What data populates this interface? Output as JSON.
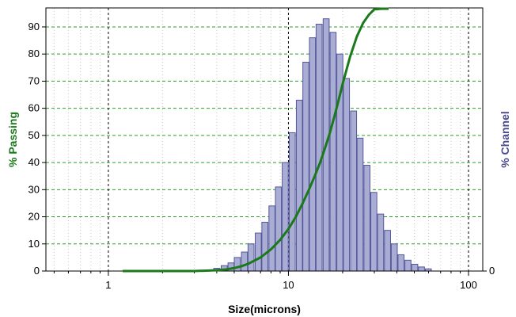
{
  "chart_data": {
    "type": "bar",
    "xlabel": "Size(microns)",
    "ylabel_left": "% Passing",
    "ylabel_right": "% Channel",
    "x_scale": "log",
    "xlim": [
      0.45,
      120
    ],
    "x_ticks": [
      {
        "value": 1,
        "label": "1"
      },
      {
        "value": 10,
        "label": "10"
      },
      {
        "value": 100,
        "label": "100"
      }
    ],
    "ylim_left": [
      0,
      97
    ],
    "y_ticks_left": [
      0,
      10,
      20,
      30,
      40,
      50,
      60,
      70,
      80,
      90
    ],
    "y_ticks_right": [
      0
    ],
    "grid": true,
    "colors": {
      "bars_fill": "#a9acd3",
      "bars_stroke": "#54579a",
      "passing_line": "#1a7a1a",
      "grid_horizontal": "#2e9c2e",
      "grid_vertical": "#000000",
      "ylabel_left": "#1a7a1a",
      "ylabel_right": "#4a4a8c"
    },
    "series": [
      {
        "kind": "bar",
        "axis": "channel",
        "x": [
          4.0,
          4.4,
          4.8,
          5.2,
          5.7,
          6.2,
          6.8,
          7.4,
          8.1,
          8.8,
          9.6,
          10.5,
          11.5,
          12.5,
          13.6,
          14.8,
          16.2,
          17.7,
          19.3,
          21.0,
          23.0,
          25.0,
          27.3,
          29.8,
          32.5,
          35.5,
          38.7,
          42.2,
          46.1,
          50.3,
          54.8,
          59.8
        ],
        "values": [
          1,
          2,
          3,
          5,
          7,
          10,
          14,
          18,
          24,
          31,
          40,
          51,
          63,
          77,
          86,
          91,
          93,
          88,
          80,
          71,
          59,
          49,
          39,
          29,
          21,
          15,
          10,
          6,
          4,
          2.5,
          1.5,
          0.8
        ]
      },
      {
        "kind": "line",
        "axis": "passing",
        "x": [
          1.2,
          2,
          3,
          4,
          4.5,
          5,
          5.5,
          6,
          7,
          8,
          9,
          10,
          11,
          12,
          13,
          14,
          15,
          16,
          17,
          18,
          19,
          20,
          22,
          24,
          26,
          28,
          30,
          33,
          36
        ],
        "values": [
          0,
          0,
          0,
          0.3,
          0.6,
          1.1,
          1.8,
          2.7,
          5.0,
          8.0,
          11.5,
          15.5,
          20.0,
          25.0,
          30.0,
          35.0,
          40.0,
          45.5,
          51.0,
          57.0,
          63.0,
          69.0,
          79.0,
          86.5,
          91.5,
          94.5,
          96.5,
          98.5,
          99.5
        ]
      }
    ]
  }
}
